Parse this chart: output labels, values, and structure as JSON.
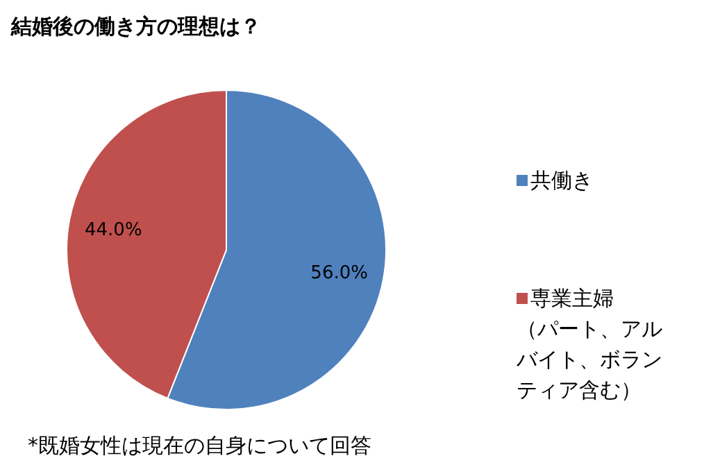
{
  "chart_data": {
    "type": "pie",
    "title": "結婚後の働き方の理想は？",
    "categories": [
      "共働き",
      "専業主婦（パート、アルバイト、ボランティア含む）"
    ],
    "values": [
      56.0,
      44.0
    ],
    "colors": [
      "#4f81bd",
      "#c0504d"
    ],
    "value_labels": [
      "56.0%",
      "44.0%"
    ],
    "legend": "right",
    "annotations": [
      "*既婚女性は現在の自身について回答"
    ]
  }
}
